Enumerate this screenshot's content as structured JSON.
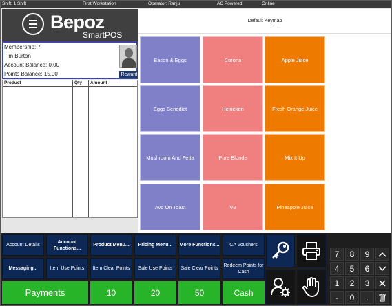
{
  "status": {
    "shift": "Shift: 1 Shift",
    "workstation": "First Workstation",
    "operator": "Operator: Ranju",
    "power": "AC Powered",
    "network": "Online"
  },
  "logo": {
    "name": "Bepoz",
    "sub": "SmartPOS"
  },
  "member": {
    "membership": "Membership: 7",
    "name": "Tim Burton",
    "account_balance": "Account Balance: 0.00",
    "points_balance": "Points Balance: 15.00",
    "reward_label": "Reward"
  },
  "order_table": {
    "headers": [
      "Product",
      "Qty",
      "Amount"
    ]
  },
  "keymap": {
    "title": "Default Keymap",
    "tiles": [
      {
        "label": "Bacon & Eggs",
        "color": "purple"
      },
      {
        "label": "Corona",
        "color": "pink"
      },
      {
        "label": "Apple Juice",
        "color": "orange"
      },
      {
        "label": "Eggs Benedict",
        "color": "purple"
      },
      {
        "label": "Heineken",
        "color": "pink"
      },
      {
        "label": "Fresh Orange Juice",
        "color": "orange"
      },
      {
        "label": "Mushroom And Fetta",
        "color": "purple"
      },
      {
        "label": "Pure Blonde",
        "color": "pink"
      },
      {
        "label": "Mix It Up",
        "color": "orange"
      },
      {
        "label": "Avo On Toast",
        "color": "purple"
      },
      {
        "label": "V8",
        "color": "pink"
      },
      {
        "label": "Pineapple Juice",
        "color": "orange"
      }
    ]
  },
  "function_buttons": {
    "row1": [
      "Account Details",
      "Account Functions...",
      "Product Menu...",
      "Pricing Menu...",
      "More Functions...",
      "CA Vouchers"
    ],
    "row2": [
      "Messaging...",
      "Item Use Points",
      "Item Clear Points",
      "Sale Use Points",
      "Sale Clear Points",
      "Redeem Points for Cash"
    ]
  },
  "payment_buttons": [
    "Payments",
    "10",
    "20",
    "50",
    "Cash"
  ],
  "icon_buttons": [
    "key-icon",
    "printer-icon",
    "user-settings-icon",
    "hand-stop-icon"
  ],
  "numpad": {
    "keys": [
      "7",
      "8",
      "9",
      "4",
      "5",
      "6",
      "1",
      "2",
      "3",
      "-",
      "0",
      "."
    ],
    "side": [
      "chevron-up-icon",
      "chevron-down-icon",
      "close-icon",
      "trash-icon"
    ]
  },
  "colors": {
    "tile_purple": "#8080c8",
    "tile_pink": "#f08080",
    "tile_orange": "#ee7a00",
    "function_navy": "#0d2855",
    "payment_green": "#28b428"
  }
}
